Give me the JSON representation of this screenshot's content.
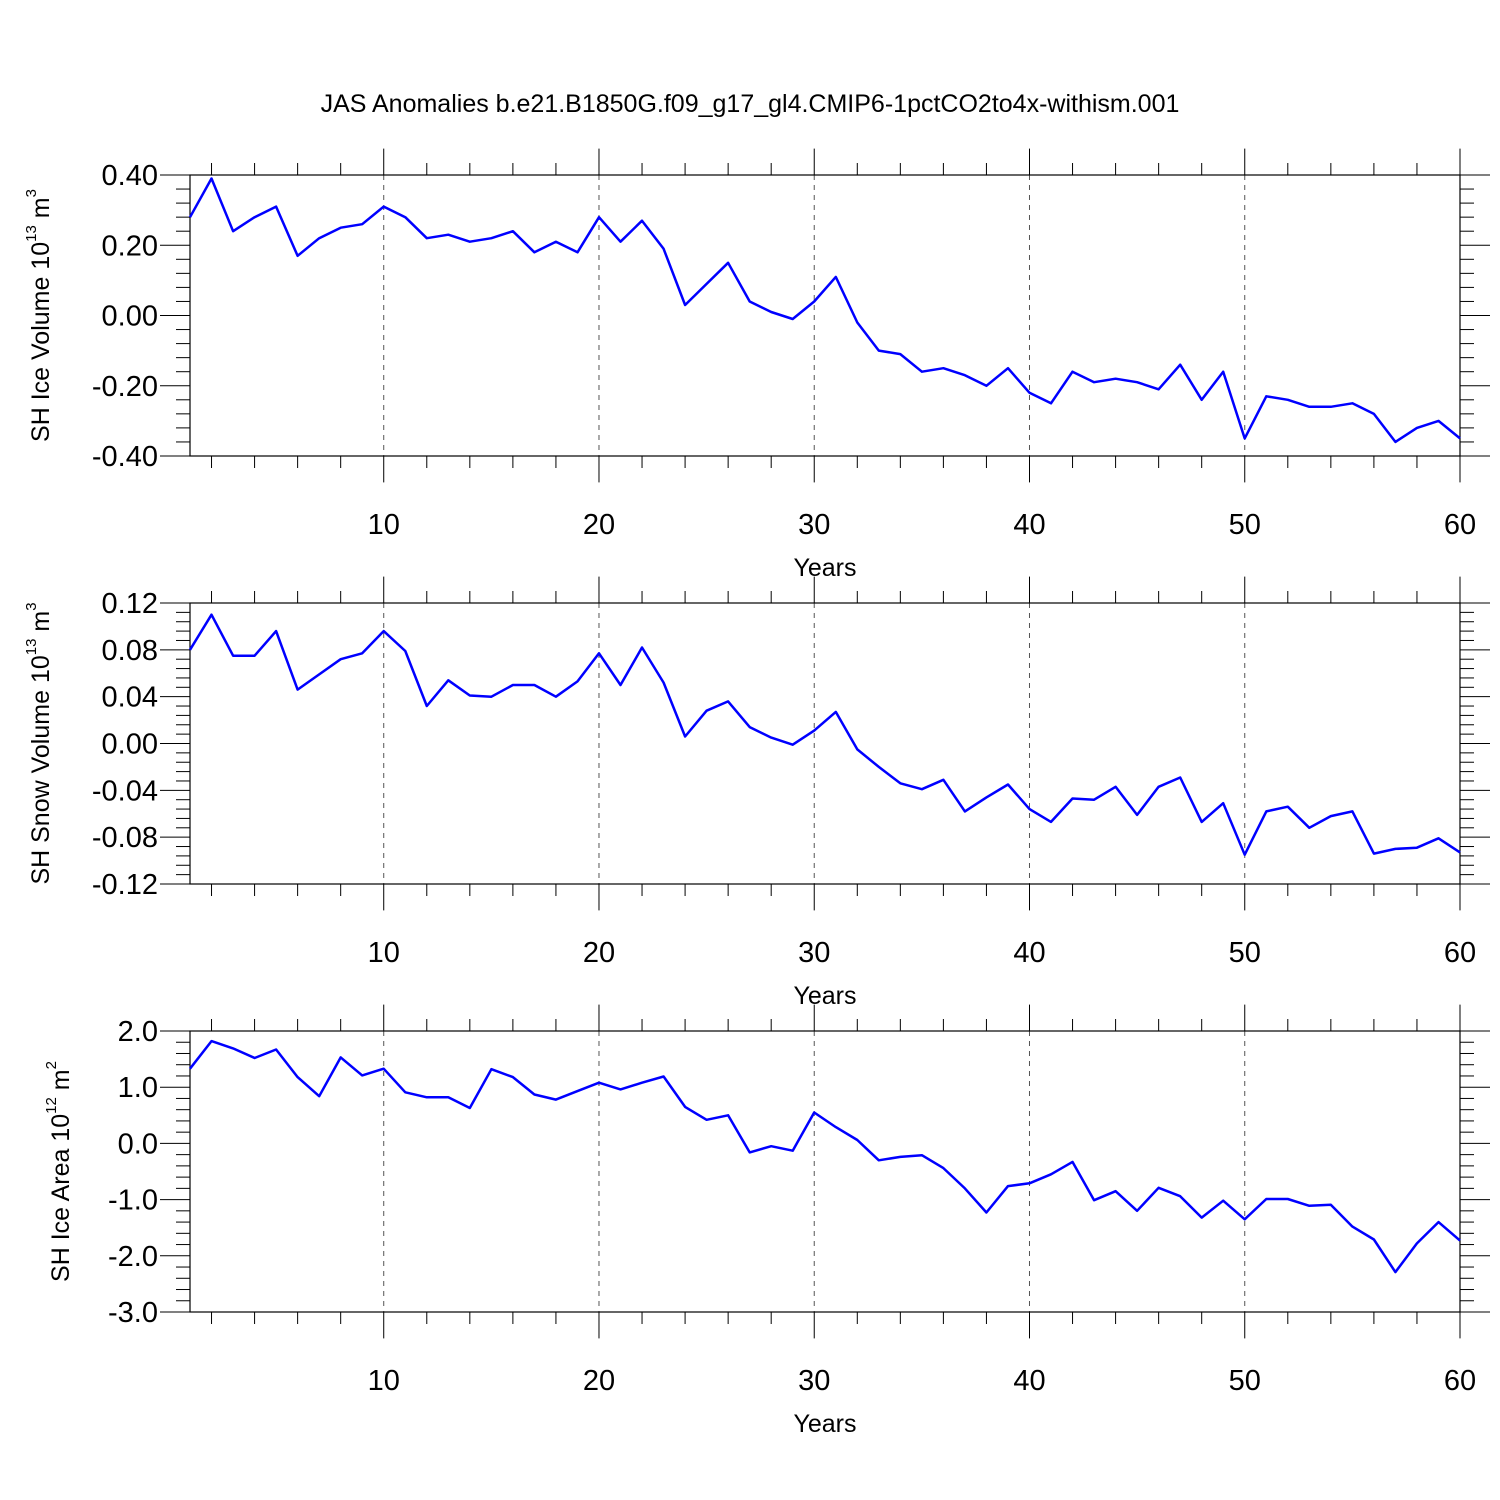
{
  "title": "JAS Anomalies b.e21.B1850G.f09_g17_gl4.CMIP6-1pctCO2to4x-withism.001",
  "colors": {
    "line": "#0000ff",
    "axis": "#000000",
    "grid": "#555555"
  },
  "chart_data": [
    {
      "type": "line",
      "xlabel": "Years",
      "ylabel": {
        "text": "SH Ice Volume 10",
        "exponent": "13",
        "unit_base": " m",
        "unit_exponent": "3"
      },
      "xlim": [
        1,
        60
      ],
      "ylim": [
        -0.4,
        0.4
      ],
      "xticks": [
        10,
        20,
        30,
        40,
        50,
        60
      ],
      "xtick_labels": [
        "10",
        "20",
        "30",
        "40",
        "50",
        "60"
      ],
      "yticks": [
        -0.4,
        -0.2,
        0.0,
        0.2,
        0.4
      ],
      "ytick_labels": [
        "-0.40",
        "-0.20",
        "0.00",
        "0.20",
        "0.40"
      ],
      "grid": "vertical dashed at major x ticks",
      "x": [
        1,
        2,
        3,
        4,
        5,
        6,
        7,
        8,
        9,
        10,
        11,
        12,
        13,
        14,
        15,
        16,
        17,
        18,
        19,
        20,
        21,
        22,
        23,
        24,
        25,
        26,
        27,
        28,
        29,
        30,
        31,
        32,
        33,
        34,
        35,
        36,
        37,
        38,
        39,
        40,
        41,
        42,
        43,
        44,
        45,
        46,
        47,
        48,
        49,
        50,
        51,
        52,
        53,
        54,
        55,
        56,
        57,
        58,
        59,
        60
      ],
      "series": [
        {
          "values": [
            0.28,
            0.39,
            0.24,
            0.28,
            0.31,
            0.17,
            0.22,
            0.25,
            0.26,
            0.31,
            0.28,
            0.22,
            0.23,
            0.21,
            0.22,
            0.24,
            0.18,
            0.21,
            0.18,
            0.28,
            0.21,
            0.27,
            0.19,
            0.03,
            0.09,
            0.15,
            0.04,
            0.01,
            -0.01,
            0.04,
            0.11,
            -0.02,
            -0.1,
            -0.11,
            -0.16,
            -0.15,
            -0.17,
            -0.2,
            -0.15,
            -0.22,
            -0.25,
            -0.16,
            -0.19,
            -0.18,
            -0.19,
            -0.21,
            -0.14,
            -0.24,
            -0.16,
            -0.35,
            -0.23,
            -0.24,
            -0.26,
            -0.26,
            -0.25,
            -0.28,
            -0.36,
            -0.32,
            -0.3,
            -0.35
          ]
        }
      ]
    },
    {
      "type": "line",
      "xlabel": "Years",
      "ylabel": {
        "text": "SH Snow Volume 10",
        "exponent": "13",
        "unit_base": " m",
        "unit_exponent": "3"
      },
      "xlim": [
        1,
        60
      ],
      "ylim": [
        -0.12,
        0.12
      ],
      "xticks": [
        10,
        20,
        30,
        40,
        50,
        60
      ],
      "xtick_labels": [
        "10",
        "20",
        "30",
        "40",
        "50",
        "60"
      ],
      "yticks": [
        -0.12,
        -0.08,
        -0.04,
        0.0,
        0.04,
        0.08,
        0.12
      ],
      "ytick_labels": [
        "-0.12",
        "-0.08",
        "-0.04",
        "0.00",
        "0.04",
        "0.08",
        "0.12"
      ],
      "grid": "vertical dashed at major x ticks",
      "x": [
        1,
        2,
        3,
        4,
        5,
        6,
        7,
        8,
        9,
        10,
        11,
        12,
        13,
        14,
        15,
        16,
        17,
        18,
        19,
        20,
        21,
        22,
        23,
        24,
        25,
        26,
        27,
        28,
        29,
        30,
        31,
        32,
        33,
        34,
        35,
        36,
        37,
        38,
        39,
        40,
        41,
        42,
        43,
        44,
        45,
        46,
        47,
        48,
        49,
        50,
        51,
        52,
        53,
        54,
        55,
        56,
        57,
        58,
        59,
        60
      ],
      "series": [
        {
          "values": [
            0.08,
            0.11,
            0.075,
            0.075,
            0.096,
            0.046,
            0.059,
            0.072,
            0.077,
            0.096,
            0.079,
            0.032,
            0.054,
            0.041,
            0.04,
            0.05,
            0.05,
            0.04,
            0.053,
            0.077,
            0.05,
            0.082,
            0.052,
            0.006,
            0.028,
            0.036,
            0.014,
            0.005,
            -0.001,
            0.011,
            0.027,
            -0.005,
            -0.02,
            -0.034,
            -0.039,
            -0.031,
            -0.058,
            -0.046,
            -0.035,
            -0.056,
            -0.067,
            -0.047,
            -0.048,
            -0.037,
            -0.061,
            -0.037,
            -0.029,
            -0.067,
            -0.051,
            -0.095,
            -0.058,
            -0.054,
            -0.072,
            -0.062,
            -0.058,
            -0.094,
            -0.09,
            -0.089,
            -0.081,
            -0.093
          ]
        }
      ]
    },
    {
      "type": "line",
      "xlabel": "Years",
      "ylabel": {
        "text": "SH Ice Area 10",
        "exponent": "12",
        "unit_base": " m",
        "unit_exponent": "2"
      },
      "xlim": [
        1,
        60
      ],
      "ylim": [
        -3.0,
        2.0
      ],
      "xticks": [
        10,
        20,
        30,
        40,
        50,
        60
      ],
      "xtick_labels": [
        "10",
        "20",
        "30",
        "40",
        "50",
        "60"
      ],
      "yticks": [
        -3.0,
        -2.0,
        -1.0,
        0.0,
        1.0,
        2.0
      ],
      "ytick_labels": [
        "-3.0",
        "-2.0",
        "-1.0",
        "0.0",
        "1.0",
        "2.0"
      ],
      "grid": "vertical dashed at major x ticks",
      "x": [
        1,
        2,
        3,
        4,
        5,
        6,
        7,
        8,
        9,
        10,
        11,
        12,
        13,
        14,
        15,
        16,
        17,
        18,
        19,
        20,
        21,
        22,
        23,
        24,
        25,
        26,
        27,
        28,
        29,
        30,
        31,
        32,
        33,
        34,
        35,
        36,
        37,
        38,
        39,
        40,
        41,
        42,
        43,
        44,
        45,
        46,
        47,
        48,
        49,
        50,
        51,
        52,
        53,
        54,
        55,
        56,
        57,
        58,
        59,
        60
      ],
      "series": [
        {
          "values": [
            1.33,
            1.82,
            1.69,
            1.52,
            1.67,
            1.18,
            0.84,
            1.53,
            1.21,
            1.33,
            0.91,
            0.82,
            0.82,
            0.63,
            1.32,
            1.18,
            0.87,
            0.78,
            0.93,
            1.08,
            0.96,
            1.08,
            1.19,
            0.65,
            0.42,
            0.5,
            -0.16,
            -0.05,
            -0.13,
            0.55,
            0.29,
            0.06,
            -0.3,
            -0.24,
            -0.21,
            -0.44,
            -0.8,
            -1.23,
            -0.76,
            -0.71,
            -0.55,
            -0.33,
            -1.01,
            -0.85,
            -1.2,
            -0.79,
            -0.94,
            -1.32,
            -1.02,
            -1.35,
            -0.99,
            -0.99,
            -1.11,
            -1.09,
            -1.48,
            -1.71,
            -2.29,
            -1.78,
            -1.4,
            -1.73
          ]
        }
      ]
    }
  ]
}
